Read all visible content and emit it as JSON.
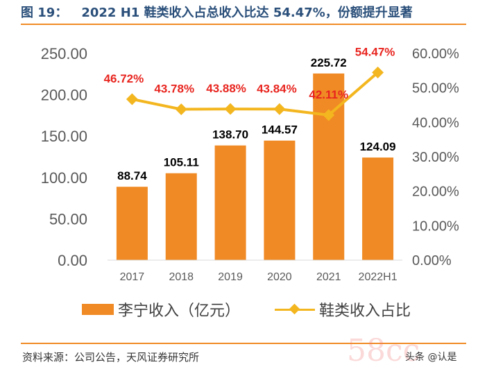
{
  "header": {
    "figure_label": "图 19：",
    "title": "2022 H1 鞋类收入占总收入比达 54.47%，份额提升显著"
  },
  "footer": {
    "source": "资料来源：公司公告，天风证券研究所",
    "watermark": "58cc",
    "credit": "头条 @认是"
  },
  "colors": {
    "bar": "#f08a24",
    "line": "#f3b61f",
    "line_label": "#e8251f",
    "accent_rule": "#f08a24",
    "title": "#2a4f7a"
  },
  "chart_data": {
    "type": "bar",
    "categories": [
      "2017",
      "2018",
      "2019",
      "2020",
      "2021",
      "2022H1"
    ],
    "series": [
      {
        "name": "李宁收入（亿元）",
        "type": "bar",
        "axis": "left",
        "values": [
          88.74,
          105.11,
          138.7,
          144.57,
          225.72,
          124.09
        ],
        "labels": [
          "88.74",
          "105.11",
          "138.70",
          "144.57",
          "225.72",
          "124.09"
        ]
      },
      {
        "name": "鞋类收入占比",
        "type": "line",
        "axis": "right",
        "values": [
          46.72,
          43.78,
          43.88,
          43.84,
          42.11,
          54.47
        ],
        "labels": [
          "46.72%",
          "43.78%",
          "43.88%",
          "43.84%",
          "42.11%",
          "54.47%"
        ]
      }
    ],
    "y_left": {
      "ylim": [
        0,
        250
      ],
      "ticks": [
        "0.00",
        "50.00",
        "100.00",
        "150.00",
        "200.00",
        "250.00"
      ]
    },
    "y_right": {
      "ylim": [
        0,
        60
      ],
      "ticks": [
        "0.00%",
        "10.00%",
        "20.00%",
        "30.00%",
        "40.00%",
        "50.00%",
        "60.00%"
      ]
    },
    "grid": false,
    "legend": "bottom"
  }
}
